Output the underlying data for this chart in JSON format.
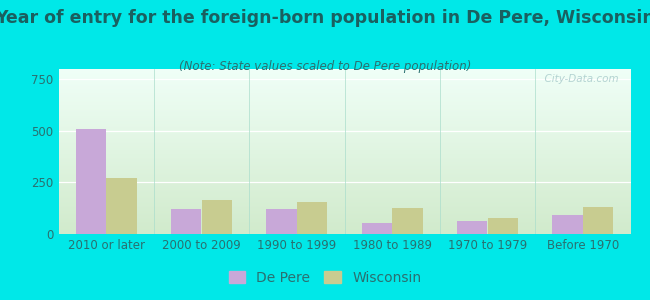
{
  "title": "Year of entry for the foreign-born population in De Pere, Wisconsin",
  "subtitle": "(Note: State values scaled to De Pere population)",
  "categories": [
    "2010 or later",
    "2000 to 2009",
    "1990 to 1999",
    "1980 to 1989",
    "1970 to 1979",
    "Before 1970"
  ],
  "depere_values": [
    510,
    120,
    120,
    55,
    65,
    90
  ],
  "wisconsin_values": [
    270,
    165,
    155,
    125,
    80,
    130
  ],
  "depere_color": "#c8a8d8",
  "wisconsin_color": "#c8cc90",
  "ylim": [
    0,
    800
  ],
  "yticks": [
    0,
    250,
    500,
    750
  ],
  "bg_color": "#00e8e8",
  "plot_bg_top": "#f0fff8",
  "plot_bg_bottom": "#d5ecd0",
  "title_fontsize": 12.5,
  "subtitle_fontsize": 8.5,
  "tick_fontsize": 8.5,
  "legend_fontsize": 10,
  "bar_width": 0.32,
  "title_color": "#1a6060",
  "subtitle_color": "#2a7070",
  "tick_color": "#2a7070",
  "watermark_color": "#aacccc"
}
